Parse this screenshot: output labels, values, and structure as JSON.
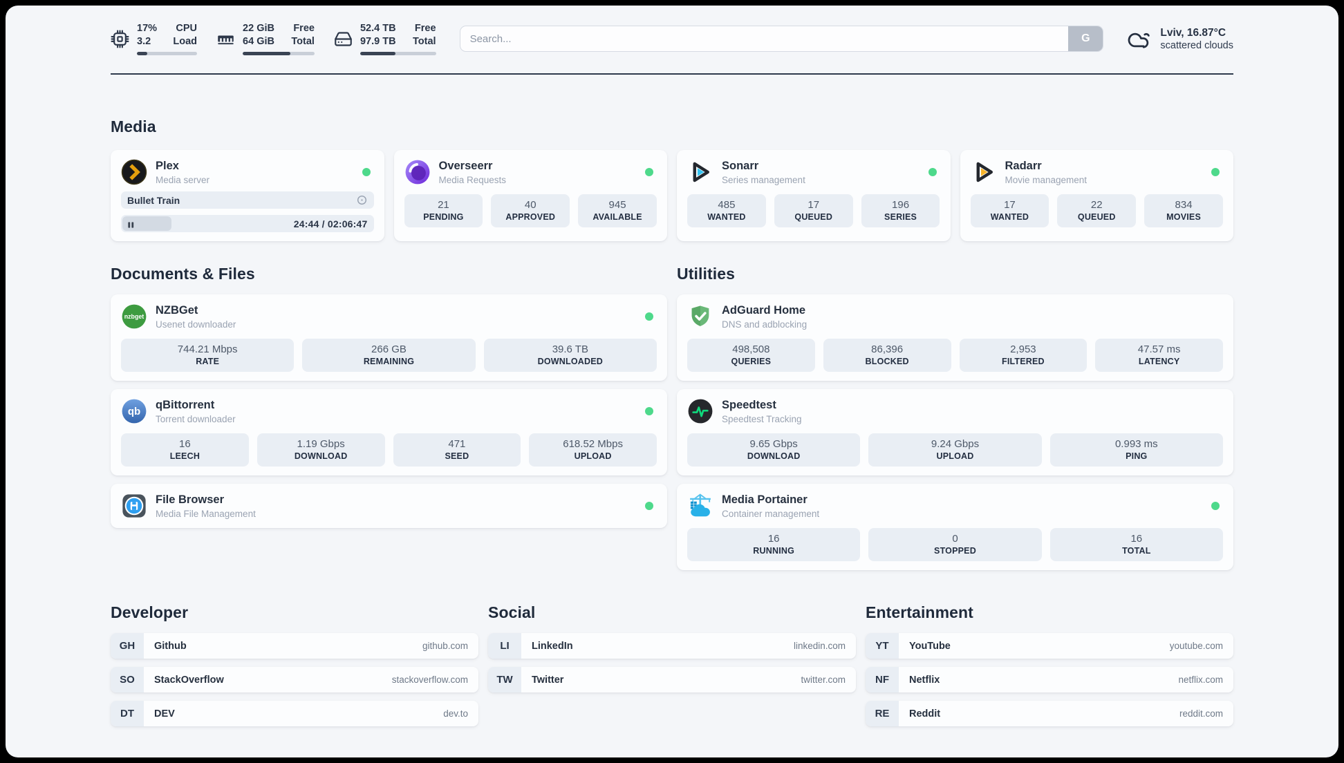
{
  "colors": {
    "status_online": "#4ed98b",
    "progress_fill": "#3a4454",
    "topbar_icon": "#2c3749"
  },
  "topbar": {
    "cpu": {
      "value_top": "17%",
      "value_bottom": "3.2",
      "label_top": "CPU",
      "label_bottom": "Load",
      "progress_pct": 17
    },
    "ram": {
      "value_top": "22 GiB",
      "value_bottom": "64 GiB",
      "label_top": "Free",
      "label_bottom": "Total",
      "progress_pct": 66
    },
    "disk": {
      "value_top": "52.4 TB",
      "value_bottom": "97.9 TB",
      "label_top": "Free",
      "label_bottom": "Total",
      "progress_pct": 47
    },
    "search": {
      "placeholder": "Search...",
      "button_label": "G"
    },
    "weather": {
      "location": "Lviv, 16.87°C",
      "condition": "scattered clouds"
    }
  },
  "sections": {
    "media": "Media",
    "documents": "Documents & Files",
    "utilities": "Utilities"
  },
  "apps": {
    "plex": {
      "name": "Plex",
      "desc": "Media server",
      "now_playing": "Bullet Train",
      "time": "24:44 / 02:06:47",
      "progress_pct": 19.5,
      "online": true
    },
    "overseerr": {
      "name": "Overseerr",
      "desc": "Media Requests",
      "online": true,
      "stats": [
        {
          "value": "21",
          "label": "PENDING"
        },
        {
          "value": "40",
          "label": "APPROVED"
        },
        {
          "value": "945",
          "label": "AVAILABLE"
        }
      ]
    },
    "sonarr": {
      "name": "Sonarr",
      "desc": "Series management",
      "online": true,
      "stats": [
        {
          "value": "485",
          "label": "WANTED"
        },
        {
          "value": "17",
          "label": "QUEUED"
        },
        {
          "value": "196",
          "label": "SERIES"
        }
      ]
    },
    "radarr": {
      "name": "Radarr",
      "desc": "Movie management",
      "online": true,
      "stats": [
        {
          "value": "17",
          "label": "WANTED"
        },
        {
          "value": "22",
          "label": "QUEUED"
        },
        {
          "value": "834",
          "label": "MOVIES"
        }
      ]
    },
    "nzbget": {
      "name": "NZBGet",
      "desc": "Usenet downloader",
      "online": true,
      "stats": [
        {
          "value": "744.21 Mbps",
          "label": "RATE"
        },
        {
          "value": "266 GB",
          "label": "REMAINING"
        },
        {
          "value": "39.6 TB",
          "label": "DOWNLOADED"
        }
      ]
    },
    "qbittorrent": {
      "name": "qBittorrent",
      "desc": "Torrent downloader",
      "online": true,
      "stats": [
        {
          "value": "16",
          "label": "LEECH"
        },
        {
          "value": "1.19 Gbps",
          "label": "DOWNLOAD"
        },
        {
          "value": "471",
          "label": "SEED"
        },
        {
          "value": "618.52 Mbps",
          "label": "UPLOAD"
        }
      ]
    },
    "filebrowser": {
      "name": "File Browser",
      "desc": "Media File Management",
      "online": true
    },
    "adguard": {
      "name": "AdGuard Home",
      "desc": "DNS and adblocking",
      "stats": [
        {
          "value": "498,508",
          "label": "QUERIES"
        },
        {
          "value": "86,396",
          "label": "BLOCKED"
        },
        {
          "value": "2,953",
          "label": "FILTERED"
        },
        {
          "value": "47.57 ms",
          "label": "LATENCY"
        }
      ]
    },
    "speedtest": {
      "name": "Speedtest",
      "desc": "Speedtest Tracking",
      "stats": [
        {
          "value": "9.65 Gbps",
          "label": "DOWNLOAD"
        },
        {
          "value": "9.24 Gbps",
          "label": "UPLOAD"
        },
        {
          "value": "0.993 ms",
          "label": "PING"
        }
      ]
    },
    "portainer": {
      "name": "Media Portainer",
      "desc": "Container management",
      "online": true,
      "stats": [
        {
          "value": "16",
          "label": "RUNNING"
        },
        {
          "value": "0",
          "label": "STOPPED"
        },
        {
          "value": "16",
          "label": "TOTAL"
        }
      ]
    }
  },
  "bookmarks": [
    {
      "title": "Developer",
      "items": [
        {
          "abbr": "GH",
          "name": "Github",
          "url": "github.com"
        },
        {
          "abbr": "SO",
          "name": "StackOverflow",
          "url": "stackoverflow.com"
        },
        {
          "abbr": "DT",
          "name": "DEV",
          "url": "dev.to"
        }
      ]
    },
    {
      "title": "Social",
      "items": [
        {
          "abbr": "LI",
          "name": "LinkedIn",
          "url": "linkedin.com"
        },
        {
          "abbr": "TW",
          "name": "Twitter",
          "url": "twitter.com"
        }
      ]
    },
    {
      "title": "Entertainment",
      "items": [
        {
          "abbr": "YT",
          "name": "YouTube",
          "url": "youtube.com"
        },
        {
          "abbr": "NF",
          "name": "Netflix",
          "url": "netflix.com"
        },
        {
          "abbr": "RE",
          "name": "Reddit",
          "url": "reddit.com"
        }
      ]
    }
  ]
}
